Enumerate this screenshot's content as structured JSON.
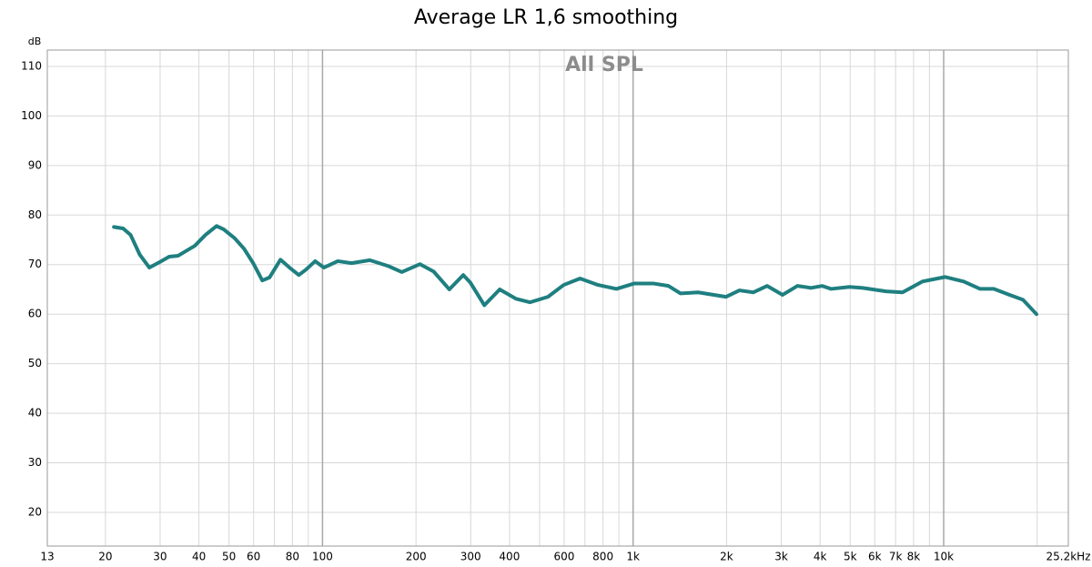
{
  "chart_data": {
    "type": "line",
    "title": "Average LR 1,6 smoothing",
    "annotation": "All SPL",
    "ylabel": "dB",
    "log_x": true,
    "grid": true,
    "color": "#1f7f80",
    "x": [
      21.3,
      22.8,
      24.1,
      25.8,
      27.7,
      29.9,
      32.1,
      34.3,
      38.8,
      42,
      45.6,
      48.1,
      52.2,
      55.9,
      59.8,
      64,
      67.5,
      73.2,
      78.3,
      83.9,
      88.5,
      94.7,
      101,
      112,
      124,
      142,
      163,
      180,
      206,
      228,
      256,
      284,
      299,
      332,
      372,
      420,
      466,
      532,
      598,
      675,
      771,
      884,
      1010,
      1160,
      1300,
      1420,
      1620,
      1990,
      2200,
      2440,
      2700,
      3030,
      3380,
      3740,
      4060,
      4340,
      4970,
      5490,
      6520,
      7370,
      8550,
      10100,
      11600,
      13100,
      14500,
      16300,
      18000,
      19900
    ],
    "values": [
      77.6,
      77.3,
      76,
      72,
      69.4,
      70.5,
      71.6,
      71.8,
      73.8,
      76,
      77.8,
      77.1,
      75.3,
      73.2,
      70.3,
      66.8,
      67.4,
      71,
      69.4,
      67.9,
      69,
      70.7,
      69.4,
      70.7,
      70.3,
      70.9,
      69.7,
      68.5,
      70.1,
      68.6,
      65,
      67.9,
      66.4,
      61.8,
      65,
      63.1,
      62.4,
      63.5,
      65.9,
      67.2,
      65.9,
      65.1,
      66.2,
      66.2,
      65.7,
      64.2,
      64.4,
      63.5,
      64.8,
      64.4,
      65.7,
      63.9,
      65.7,
      65.3,
      65.7,
      65.1,
      65.5,
      65.3,
      64.6,
      64.4,
      66.6,
      67.5,
      66.6,
      65.1,
      65.1,
      63.9,
      62.9,
      60
    ],
    "xlim": [
      13,
      25200
    ],
    "xticks": [
      13,
      20,
      30,
      40,
      50,
      60,
      80,
      100,
      200,
      300,
      400,
      600,
      800,
      {
        "value": 1000,
        "label": "1k"
      },
      {
        "value": 2000,
        "label": "2k"
      },
      {
        "value": 3000,
        "label": "3k"
      },
      {
        "value": 4000,
        "label": "4k"
      },
      {
        "value": 5000,
        "label": "5k"
      },
      {
        "value": 6000,
        "label": "6k"
      },
      {
        "value": 7000,
        "label": "7k"
      },
      {
        "value": 8000,
        "label": "8k"
      },
      {
        "value": 10000,
        "label": "10k"
      },
      {
        "value": 25200,
        "label": "25.2kHz"
      }
    ],
    "xgrid_minor": [
      70,
      90,
      500,
      700,
      900,
      9000,
      20000
    ],
    "ylim": [
      13.2,
      113.3
    ],
    "yticks": [
      20,
      30,
      40,
      50,
      60,
      70,
      80,
      90,
      100,
      110
    ]
  }
}
